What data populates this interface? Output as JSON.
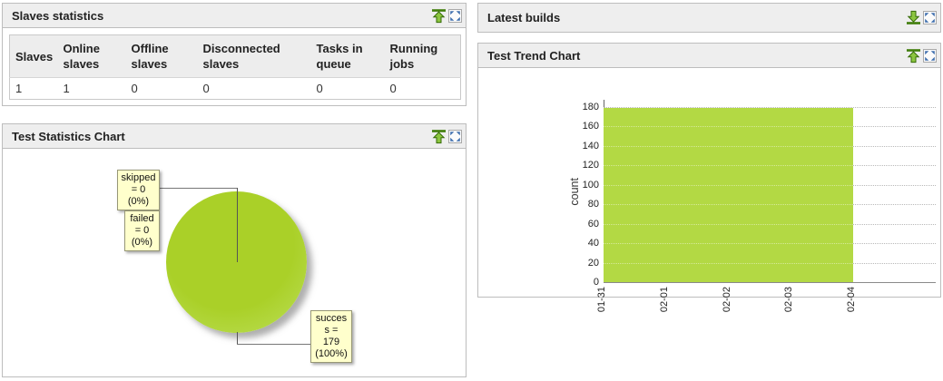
{
  "colors": {
    "portlet_header_bg": "#eeeeee",
    "portlet_border": "#bdbdbd",
    "pie_green": "#a8cf28",
    "area_green": "#b3d944",
    "callout_bg": "#ffffcc"
  },
  "icons": {
    "collapse": "green-arrow-up-with-bar",
    "expand": "green-arrow-down-with-bar",
    "maximize": "blue-four-corner-arrows"
  },
  "portlets": {
    "slaves": {
      "title": "Slaves statistics"
    },
    "latest_builds": {
      "title": "Latest builds"
    },
    "test_statistics": {
      "title": "Test Statistics Chart"
    },
    "test_trend": {
      "title": "Test Trend Chart"
    }
  },
  "slaves_table": {
    "headers": [
      "Slaves",
      "Online slaves",
      "Offline slaves",
      "Disconnected slaves",
      "Tasks in queue",
      "Running jobs"
    ],
    "rows": [
      [
        "1",
        "1",
        "0",
        "0",
        "0",
        "0"
      ]
    ]
  },
  "chart_data": [
    {
      "type": "pie",
      "title": "Test Statistics Chart",
      "slices": [
        {
          "label": "success",
          "value": 179,
          "percent": 100,
          "color": "#a8cf28"
        },
        {
          "label": "failed",
          "value": 0,
          "percent": 0
        },
        {
          "label": "skipped",
          "value": 0,
          "percent": 0
        }
      ],
      "callouts": [
        {
          "for": "skipped",
          "lines": [
            "skipped",
            "= 0",
            "(0%)"
          ]
        },
        {
          "for": "failed",
          "lines": [
            "failed",
            "= 0",
            "(0%)"
          ]
        },
        {
          "for": "success",
          "lines": [
            "succes",
            "s =",
            "179",
            "(100%)"
          ]
        }
      ]
    },
    {
      "type": "area",
      "title": "Test Trend Chart",
      "x": [
        "01-31",
        "02-01",
        "02-02",
        "02-03",
        "02-04"
      ],
      "series": [
        {
          "name": "count",
          "values": [
            179,
            179,
            179,
            179,
            179
          ]
        }
      ],
      "xlabel": "",
      "ylabel": "count",
      "ylim": [
        0,
        180
      ],
      "yticks": [
        0,
        20,
        40,
        60,
        80,
        100,
        120,
        140,
        160,
        180
      ],
      "grid": "horizontal-dotted",
      "legend": "none",
      "fill_color": "#b3d944"
    }
  ]
}
